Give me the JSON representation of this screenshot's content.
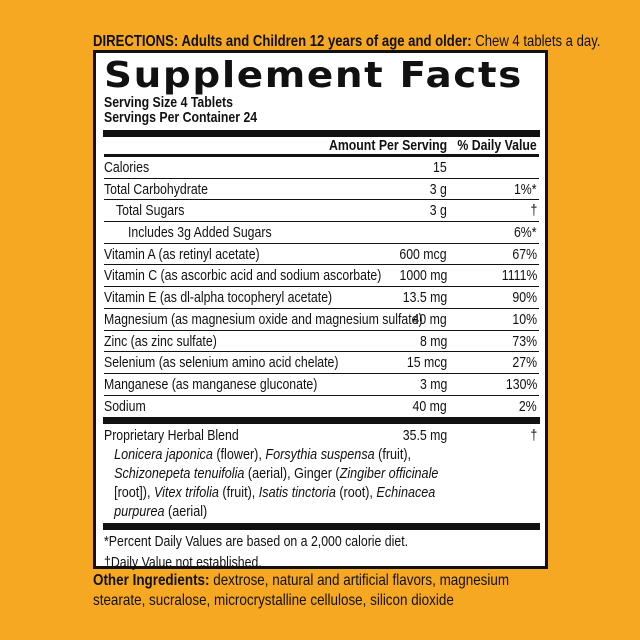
{
  "directions": {
    "label": "DIRECTIONS: Adults and Children 12 years of age and older:",
    "text": "Chew 4 tablets a day."
  },
  "title": "Supplement Facts",
  "serving_size": "Serving Size 4 Tablets",
  "servings_per_container": "Servings Per Container 24",
  "headers": {
    "amount": "Amount Per Serving",
    "dv": "% Daily Value"
  },
  "rows": [
    {
      "name": "Calories",
      "amount": "15",
      "dv": ""
    },
    {
      "name": "Total Carbohydrate",
      "amount": "3 g",
      "dv": "1%*"
    },
    {
      "name": "Total Sugars",
      "amount": "3 g",
      "dv": "†"
    },
    {
      "name": "Includes 3g Added Sugars",
      "amount": "",
      "dv": "6%*"
    },
    {
      "name": "Vitamin A (as retinyl acetate)",
      "amount": "600 mcg",
      "dv": "67%"
    },
    {
      "name": "Vitamin C (as ascorbic acid and sodium ascorbate)",
      "amount": "1000 mg",
      "dv": "1111%"
    },
    {
      "name": "Vitamin E (as dl-alpha tocopheryl acetate)",
      "amount": "13.5 mg",
      "dv": "90%"
    },
    {
      "name": "Magnesium (as magnesium oxide and magnesium sulfate)",
      "amount": "40 mg",
      "dv": "10%"
    },
    {
      "name": "Zinc (as zinc sulfate)",
      "amount": "8 mg",
      "dv": "73%"
    },
    {
      "name": "Selenium (as selenium amino acid chelate)",
      "amount": "15 mcg",
      "dv": "27%"
    },
    {
      "name": "Manganese (as manganese gluconate)",
      "amount": "3 mg",
      "dv": "130%"
    },
    {
      "name": "Sodium",
      "amount": "40 mg",
      "dv": "2%"
    }
  ],
  "blend": {
    "name": "Proprietary Herbal Blend",
    "amount": "35.5 mg",
    "dv": "†",
    "lines": [
      [
        {
          "t": "Lonicera japonica",
          "i": true
        },
        {
          "t": " (flower), ",
          "i": false
        },
        {
          "t": "Forsythia suspensa",
          "i": true
        },
        {
          "t": " (fruit),",
          "i": false
        }
      ],
      [
        {
          "t": "Schizonepeta tenuifolia",
          "i": true
        },
        {
          "t": " (aerial), Ginger (",
          "i": false
        },
        {
          "t": "Zingiber officinale",
          "i": true
        }
      ],
      [
        {
          "t": "[root]), ",
          "i": false
        },
        {
          "t": "Vitex trifolia",
          "i": true
        },
        {
          "t": " (fruit), ",
          "i": false
        },
        {
          "t": "Isatis tinctoria",
          "i": true
        },
        {
          "t": " (root), ",
          "i": false
        },
        {
          "t": "Echinacea",
          "i": true
        }
      ],
      [
        {
          "t": "purpurea",
          "i": true
        },
        {
          "t": " (aerial)",
          "i": false
        }
      ]
    ]
  },
  "footnotes": [
    "*Percent Daily Values are based on a 2,000 calorie diet.",
    "†Daily Value not established."
  ],
  "other_ingredients": {
    "label": "Other Ingredients:",
    "text": "dextrose, natural and artificial flavors, magnesium stearate, sucralose, microcrystalline cellulose, silicon dioxide"
  },
  "colors": {
    "background": "#F7A823",
    "ink": "#111111"
  }
}
